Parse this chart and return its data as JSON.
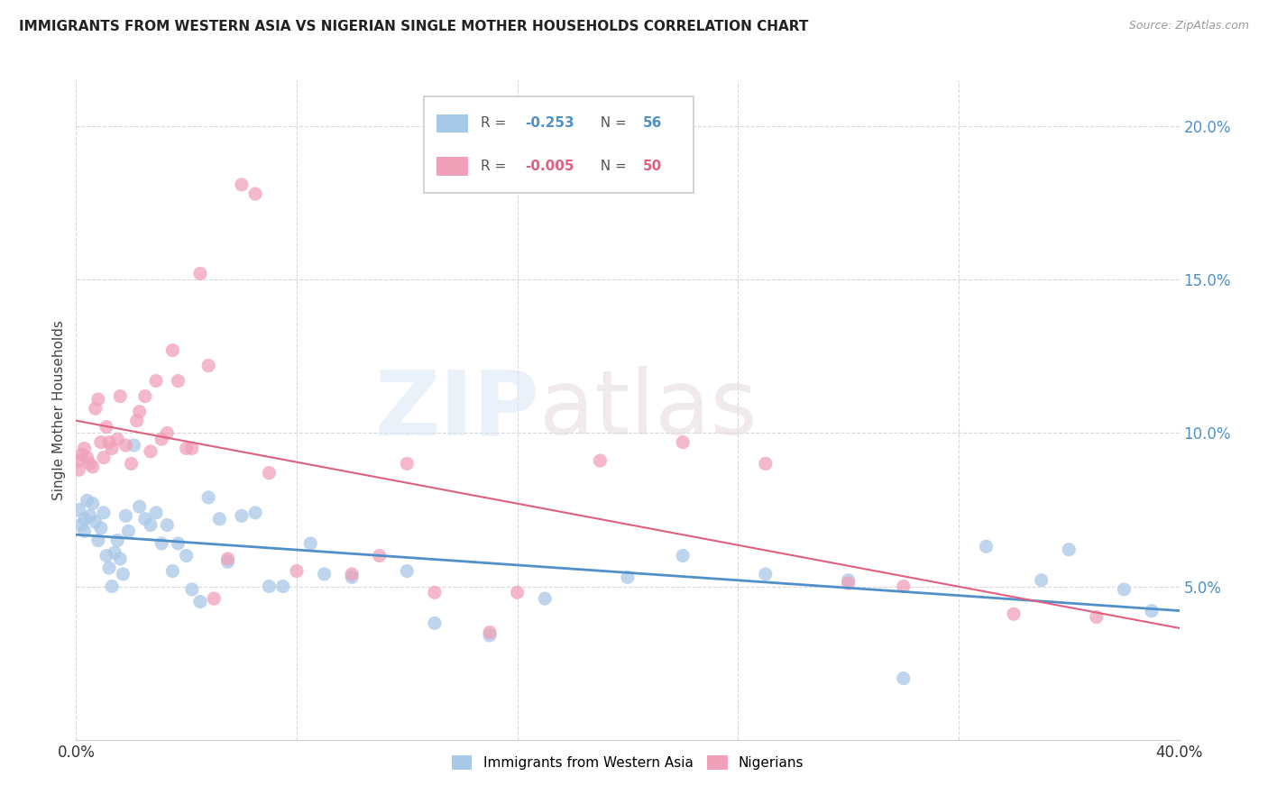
{
  "title": "IMMIGRANTS FROM WESTERN ASIA VS NIGERIAN SINGLE MOTHER HOUSEHOLDS CORRELATION CHART",
  "source": "Source: ZipAtlas.com",
  "ylabel": "Single Mother Households",
  "legend_label_blue": "Immigrants from Western Asia",
  "legend_label_pink": "Nigerians",
  "xlim": [
    0.0,
    0.4
  ],
  "ylim": [
    0.0,
    0.215
  ],
  "yticks": [
    0.05,
    0.1,
    0.15,
    0.2
  ],
  "ytick_labels": [
    "5.0%",
    "10.0%",
    "15.0%",
    "20.0%"
  ],
  "xticks": [
    0.0,
    0.08,
    0.16,
    0.24,
    0.32,
    0.4
  ],
  "background_color": "#ffffff",
  "grid_color": "#d8d8d8",
  "blue_color": "#a8c8e8",
  "pink_color": "#f0a0b8",
  "blue_line_color": "#5090c8",
  "pink_line_color": "#e06080",
  "blue_scatter_x": [
    0.001,
    0.002,
    0.003,
    0.003,
    0.004,
    0.005,
    0.006,
    0.007,
    0.008,
    0.009,
    0.01,
    0.011,
    0.012,
    0.013,
    0.014,
    0.015,
    0.016,
    0.017,
    0.018,
    0.019,
    0.021,
    0.023,
    0.025,
    0.027,
    0.029,
    0.031,
    0.033,
    0.035,
    0.037,
    0.04,
    0.042,
    0.045,
    0.048,
    0.052,
    0.055,
    0.06,
    0.065,
    0.07,
    0.075,
    0.085,
    0.09,
    0.1,
    0.12,
    0.13,
    0.15,
    0.17,
    0.2,
    0.22,
    0.25,
    0.28,
    0.3,
    0.33,
    0.35,
    0.36,
    0.38,
    0.39
  ],
  "blue_scatter_y": [
    0.075,
    0.07,
    0.068,
    0.072,
    0.078,
    0.073,
    0.077,
    0.071,
    0.065,
    0.069,
    0.074,
    0.06,
    0.056,
    0.05,
    0.061,
    0.065,
    0.059,
    0.054,
    0.073,
    0.068,
    0.096,
    0.076,
    0.072,
    0.07,
    0.074,
    0.064,
    0.07,
    0.055,
    0.064,
    0.06,
    0.049,
    0.045,
    0.079,
    0.072,
    0.058,
    0.073,
    0.074,
    0.05,
    0.05,
    0.064,
    0.054,
    0.053,
    0.055,
    0.038,
    0.034,
    0.046,
    0.053,
    0.06,
    0.054,
    0.052,
    0.02,
    0.063,
    0.052,
    0.062,
    0.049,
    0.042
  ],
  "pink_scatter_x": [
    0.001,
    0.001,
    0.002,
    0.003,
    0.004,
    0.005,
    0.006,
    0.007,
    0.008,
    0.009,
    0.01,
    0.011,
    0.012,
    0.013,
    0.015,
    0.016,
    0.018,
    0.02,
    0.022,
    0.023,
    0.025,
    0.027,
    0.029,
    0.031,
    0.033,
    0.035,
    0.037,
    0.04,
    0.042,
    0.045,
    0.048,
    0.05,
    0.055,
    0.06,
    0.065,
    0.07,
    0.08,
    0.1,
    0.11,
    0.12,
    0.13,
    0.15,
    0.16,
    0.19,
    0.22,
    0.25,
    0.28,
    0.3,
    0.34,
    0.37
  ],
  "pink_scatter_y": [
    0.088,
    0.091,
    0.093,
    0.095,
    0.092,
    0.09,
    0.089,
    0.108,
    0.111,
    0.097,
    0.092,
    0.102,
    0.097,
    0.095,
    0.098,
    0.112,
    0.096,
    0.09,
    0.104,
    0.107,
    0.112,
    0.094,
    0.117,
    0.098,
    0.1,
    0.127,
    0.117,
    0.095,
    0.095,
    0.152,
    0.122,
    0.046,
    0.059,
    0.181,
    0.178,
    0.087,
    0.055,
    0.054,
    0.06,
    0.09,
    0.048,
    0.035,
    0.048,
    0.091,
    0.097,
    0.09,
    0.051,
    0.05,
    0.041,
    0.04
  ]
}
